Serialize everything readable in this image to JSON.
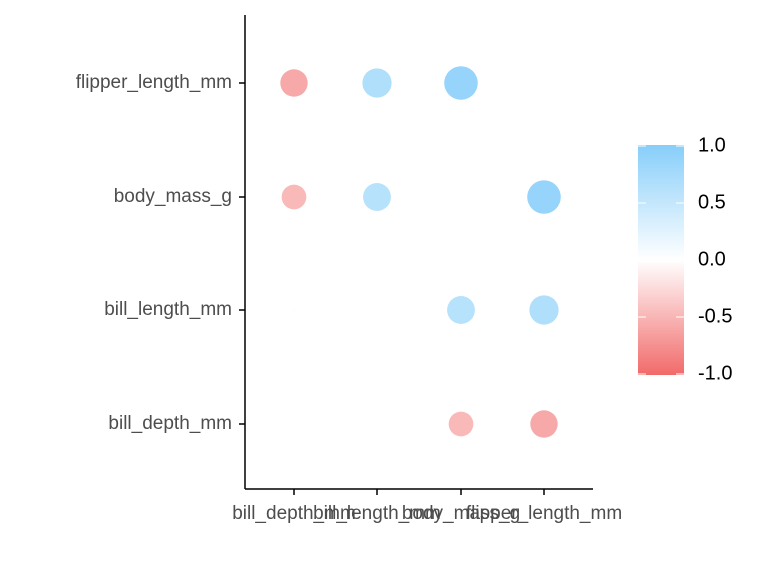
{
  "chart_data": {
    "type": "corrplot",
    "x_categories": [
      "bill_depth_mm",
      "bill_length_mm",
      "body_mass_g",
      "flipper_length_mm"
    ],
    "y_categories": [
      "bill_depth_mm",
      "bill_length_mm",
      "body_mass_g",
      "flipper_length_mm"
    ],
    "values": [
      [
        null,
        -0.01,
        -0.47,
        -0.58
      ],
      [
        -0.01,
        null,
        0.6,
        0.66
      ],
      [
        -0.47,
        0.6,
        null,
        0.87
      ],
      [
        -0.58,
        0.66,
        0.87,
        null
      ]
    ],
    "colors": {
      "low": "#f26a6a",
      "mid": "#ffffff",
      "high": "#87cefa"
    },
    "legend_lim": [
      -1,
      1
    ],
    "legend_ticks": [
      {
        "value": 1,
        "label": "1.0"
      },
      0.5,
      {
        "value": 0,
        "label": "0.0"
      },
      -0.5,
      {
        "value": -1,
        "label": "-1.0"
      }
    ]
  }
}
